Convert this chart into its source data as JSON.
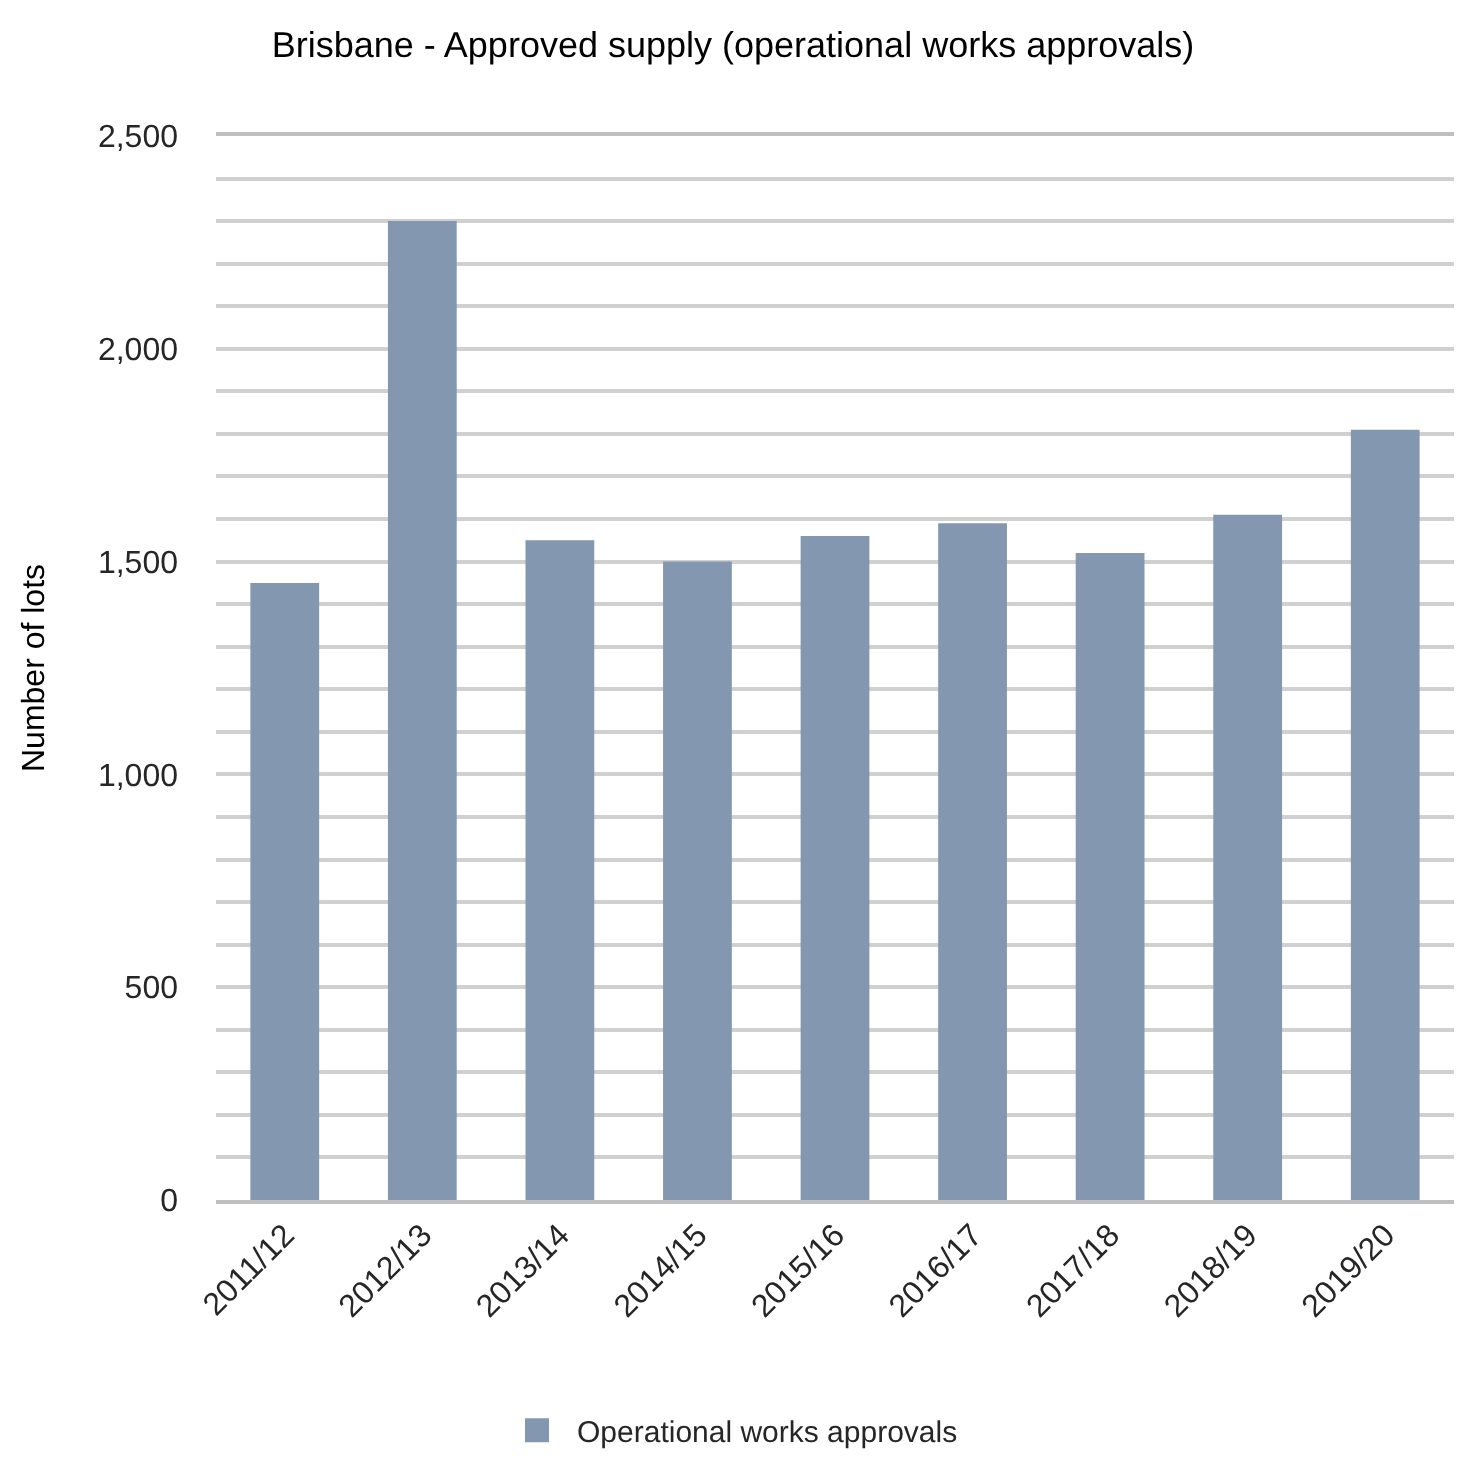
{
  "chart_data": {
    "type": "bar",
    "title": "Brisbane - Approved supply (operational works approvals)",
    "ylabel": "Number of lots",
    "categories": [
      "2011/12",
      "2012/13",
      "2013/14",
      "2014/15",
      "2015/16",
      "2016/17",
      "2017/18",
      "2018/19",
      "2019/20"
    ],
    "series": [
      {
        "name": "Operational works approvals",
        "color": "#8497b0",
        "values": [
          1450,
          2300,
          1550,
          1500,
          1560,
          1590,
          1520,
          1610,
          1810
        ]
      }
    ],
    "ylim": [
      0,
      2500
    ],
    "yticks": [
      0,
      {
        "value": 100,
        "label": null
      },
      {
        "value": 200,
        "label": null
      },
      {
        "value": 300,
        "label": null
      },
      {
        "value": 400,
        "label": null
      },
      500,
      {
        "value": 600,
        "label": null
      },
      {
        "value": 700,
        "label": null
      },
      {
        "value": 800,
        "label": null
      },
      {
        "value": 900,
        "label": null
      },
      {
        "value": 1000,
        "label": "1,000"
      },
      {
        "value": 1100,
        "label": null
      },
      {
        "value": 1200,
        "label": null
      },
      {
        "value": 1300,
        "label": null
      },
      {
        "value": 1400,
        "label": null
      },
      {
        "value": 1500,
        "label": "1,500"
      },
      {
        "value": 1600,
        "label": null
      },
      {
        "value": 1700,
        "label": null
      },
      {
        "value": 1800,
        "label": null
      },
      {
        "value": 1900,
        "label": null
      },
      {
        "value": 2000,
        "label": "2,000"
      },
      {
        "value": 2100,
        "label": null
      },
      {
        "value": 2200,
        "label": null
      },
      {
        "value": 2300,
        "label": null
      },
      {
        "value": 2400,
        "label": null
      },
      {
        "value": 2500,
        "label": "2,500"
      }
    ],
    "grid": "y",
    "legend": "bottom"
  }
}
